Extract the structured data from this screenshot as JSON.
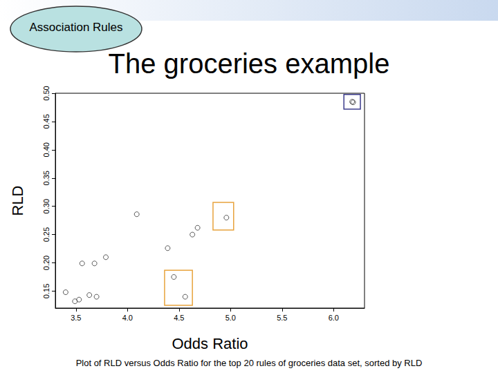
{
  "header": "Association Rules",
  "caption": "Plot of RLD versus Odds Ratio for the top 20  rules of groceries data set, sorted by RLD",
  "chart_data": {
    "type": "scatter",
    "title": "The groceries example",
    "x_label": "Odds Ratio",
    "y_label": "RLD",
    "x": [
      3.4,
      3.49,
      3.53,
      3.56,
      3.63,
      3.68,
      3.7,
      3.79,
      4.09,
      4.39,
      4.45,
      4.56,
      4.63,
      4.68,
      4.96,
      6.18,
      6.19
    ],
    "values": [
      0.148,
      0.132,
      0.135,
      0.199,
      0.143,
      0.199,
      0.14,
      0.21,
      0.286,
      0.226,
      0.175,
      0.14,
      0.25,
      0.262,
      0.28,
      0.485,
      0.484
    ],
    "color": "#333333",
    "marker": "circle_open",
    "xlim": [
      3.3,
      6.3
    ],
    "ylim": [
      0.12,
      0.5
    ],
    "xticks": [
      3.5,
      {
        "value": 4,
        "label": "4.0"
      },
      4.5,
      {
        "value": 5,
        "label": "5.0"
      },
      5.5,
      {
        "value": 6,
        "label": "6.0"
      }
    ],
    "yticks": [
      0.15,
      {
        "value": 0.2,
        "label": "0.20"
      },
      0.25,
      {
        "value": 0.3,
        "label": "0.30"
      },
      0.35,
      {
        "value": 0.4,
        "label": "0.40"
      },
      0.45,
      {
        "value": 0.5,
        "label": "0.50"
      }
    ],
    "grid": false,
    "annotations": [
      {
        "type": "box",
        "xlim": [
          4.83,
          5.03
        ],
        "ylim": [
          0.258,
          0.307
        ],
        "color": "#e8a33c"
      },
      {
        "type": "box",
        "xlim": [
          4.36,
          4.63
        ],
        "ylim": [
          0.125,
          0.187
        ],
        "color": "#e8a33c"
      },
      {
        "type": "box",
        "xlim": [
          6.1,
          6.26
        ],
        "ylim": [
          0.472,
          0.498
        ],
        "color": "#3c3c8c"
      }
    ]
  }
}
